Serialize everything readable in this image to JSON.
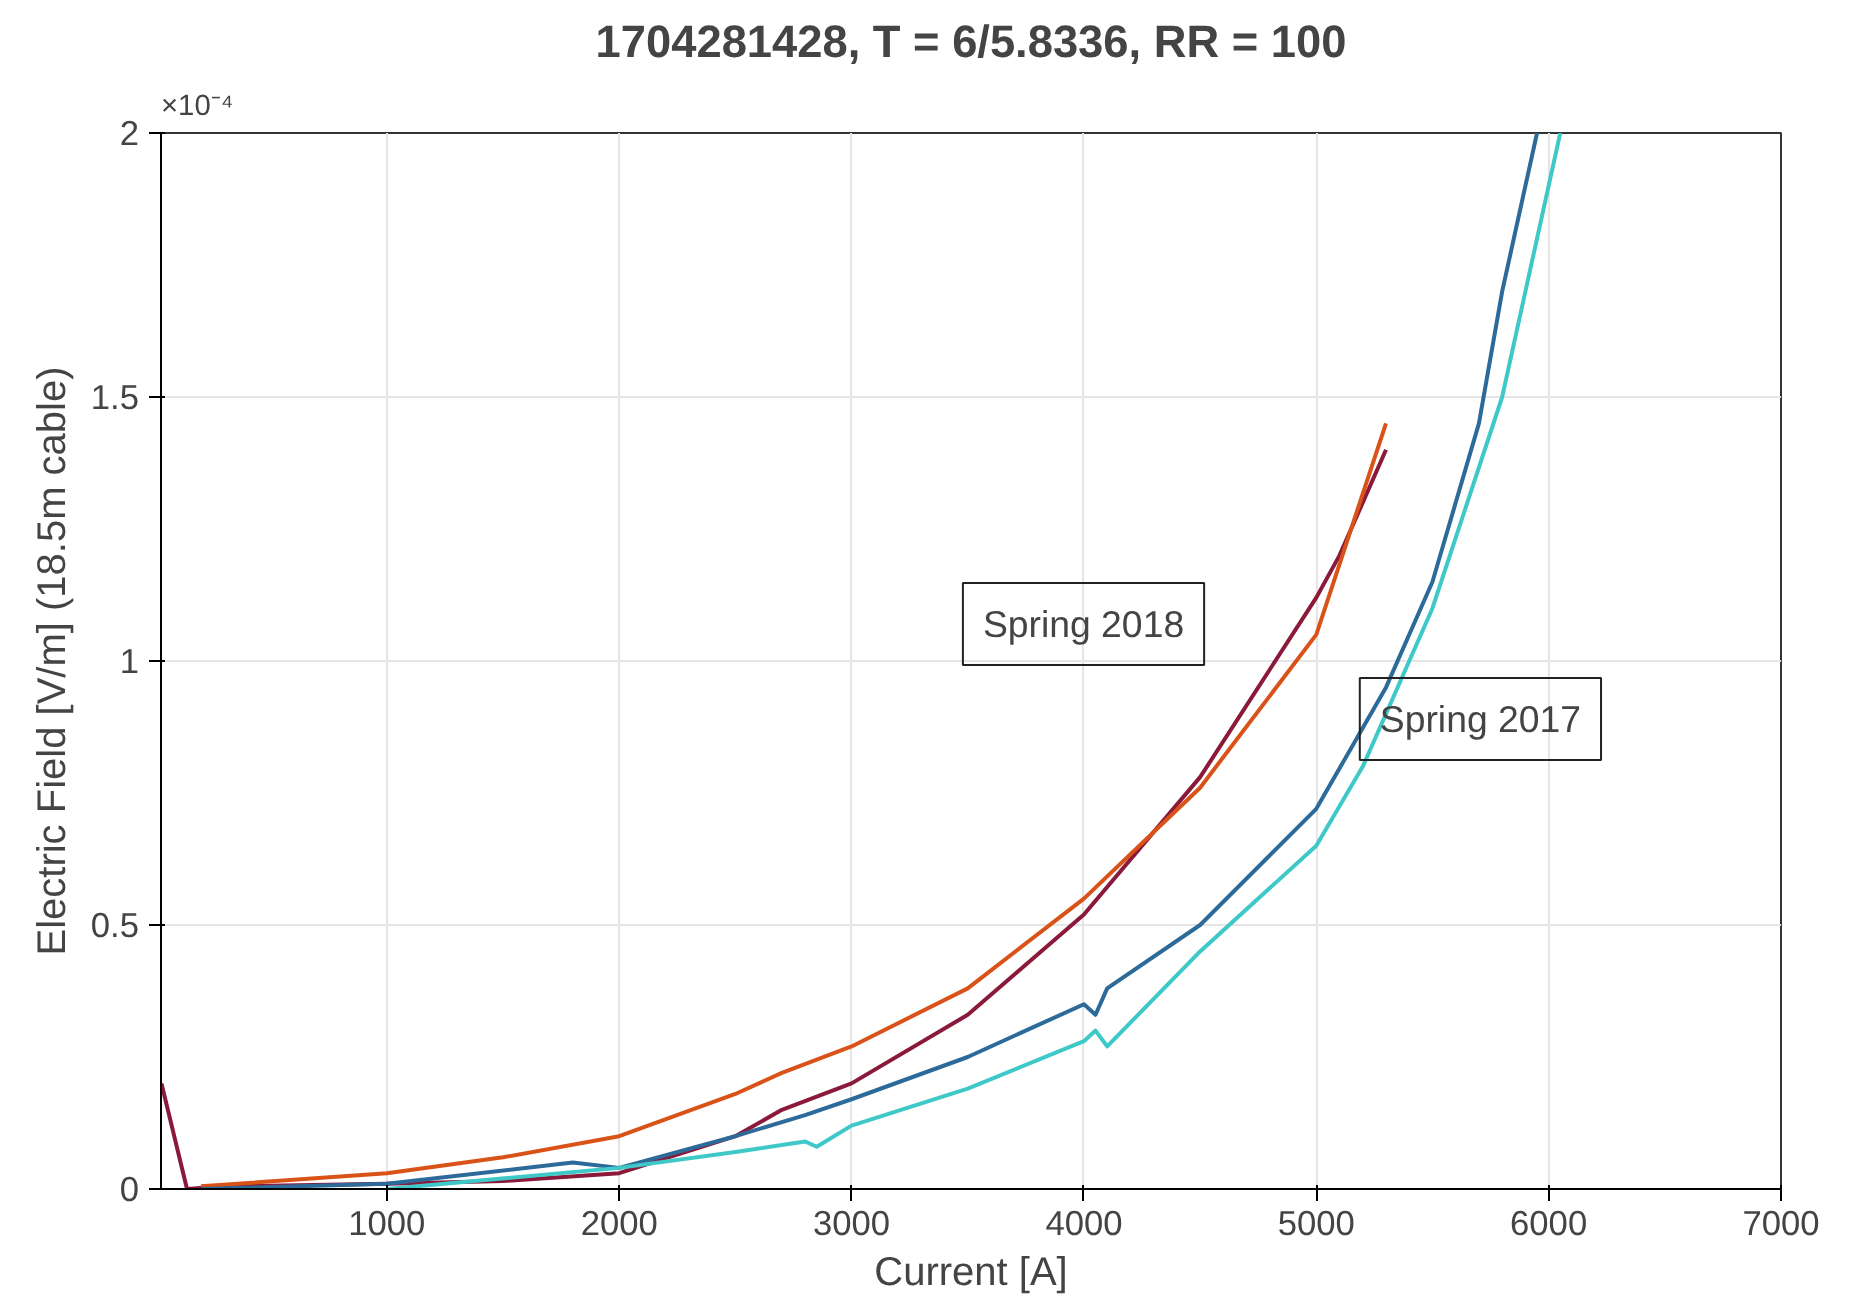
{
  "chart_data": {
    "type": "line",
    "title": "1704281428, T = 6/5.8336, RR = 100",
    "xlabel": "Current [A]",
    "ylabel": "Electric Field [V/m] (18.5m cable)",
    "xlim": [
      28,
      7000
    ],
    "ylim": [
      0,
      2
    ],
    "xticks": [
      1000,
      2000,
      3000,
      4000,
      5000,
      6000,
      7000
    ],
    "yticks": [
      0,
      0.5,
      1,
      1.5,
      2
    ],
    "grid": true,
    "line_style": "solid",
    "series": [
      {
        "color": "#8b1a3a",
        "x": [
          30,
          140,
          300,
          1000,
          1500,
          2000,
          2500,
          2700,
          3000,
          3500,
          4000,
          4500,
          5000,
          5100,
          5300
        ],
        "values": [
          0.2,
          0,
          0.005,
          0.01,
          0.015,
          0.03,
          0.1,
          0.15,
          0.2,
          0.33,
          0.52,
          0.78,
          1.12,
          1.2,
          1.4
        ]
      },
      {
        "color": "#d95319",
        "x": [
          200,
          1000,
          1500,
          2000,
          2500,
          2700,
          3000,
          3500,
          4000,
          4500,
          5000,
          5300
        ],
        "values": [
          0.005,
          0.03,
          0.06,
          0.1,
          0.18,
          0.22,
          0.27,
          0.38,
          0.55,
          0.76,
          1.05,
          1.45
        ]
      },
      {
        "color": "#2c6a9a",
        "x": [
          200,
          1000,
          1800,
          2000,
          2500,
          2800,
          3000,
          3500,
          4000,
          4050,
          4100,
          4500,
          5000,
          5300,
          5500,
          5700,
          5800,
          5950
        ],
        "values": [
          0,
          0.01,
          0.05,
          0.04,
          0.1,
          0.14,
          0.17,
          0.25,
          0.35,
          0.33,
          0.38,
          0.5,
          0.72,
          0.95,
          1.15,
          1.45,
          1.7,
          2
        ]
      },
      {
        "color": "#3fc8c8",
        "x": [
          1000,
          2000,
          2500,
          2800,
          2850,
          3000,
          3500,
          4000,
          4050,
          4100,
          4500,
          5000,
          5200,
          5500,
          5800,
          6050
        ],
        "values": [
          0,
          0.04,
          0.07,
          0.09,
          0.08,
          0.12,
          0.19,
          0.28,
          0.3,
          0.27,
          0.45,
          0.65,
          0.8,
          1.1,
          1.5,
          2
        ]
      }
    ],
    "annotations": [
      "×10⁻⁴",
      "Spring 2018",
      "Spring 2017"
    ]
  }
}
